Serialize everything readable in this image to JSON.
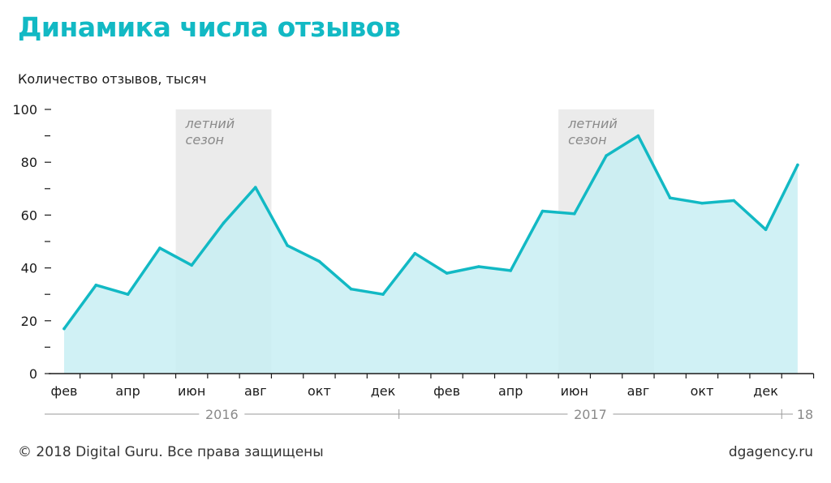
{
  "header": {
    "title": "Динамика числа отзывов"
  },
  "footer": {
    "copyright": "© 2018 Digital Guru. Все права защищены",
    "site": "dgagency.ru"
  },
  "colors": {
    "accent": "#12b9c4",
    "area_fill": "#c8eff3",
    "season_band": "#ebebeb"
  },
  "chart_data": {
    "type": "area",
    "title": "Динамика числа отзывов",
    "ylabel": "Количество отзывов, тысяч",
    "xlabel": "",
    "ylim": [
      0,
      100
    ],
    "y_ticks": [
      0,
      20,
      40,
      60,
      80,
      100
    ],
    "y_minor_ticks": [
      10,
      30,
      50,
      70,
      90
    ],
    "x": [
      "2016-02",
      "2016-03",
      "2016-04",
      "2016-05",
      "2016-06",
      "2016-07",
      "2016-08",
      "2016-09",
      "2016-10",
      "2016-11",
      "2016-12",
      "2017-01",
      "2017-02",
      "2017-03",
      "2017-04",
      "2017-05",
      "2017-06",
      "2017-07",
      "2017-08",
      "2017-09",
      "2017-10",
      "2017-11",
      "2017-12",
      "2018-01"
    ],
    "values": [
      17,
      33.5,
      30,
      47.5,
      41,
      57,
      70.5,
      48.5,
      42.5,
      32,
      30,
      45.5,
      38,
      40.5,
      39,
      61.5,
      60.5,
      82.5,
      90,
      66.5,
      64.5,
      65.5,
      54.5,
      79
    ],
    "x_tick_labels": [
      {
        "label": "фев",
        "index": 0
      },
      {
        "label": "апр",
        "index": 2
      },
      {
        "label": "июн",
        "index": 4
      },
      {
        "label": "авг",
        "index": 6
      },
      {
        "label": "окт",
        "index": 8
      },
      {
        "label": "дек",
        "index": 10
      },
      {
        "label": "фев",
        "index": 12
      },
      {
        "label": "апр",
        "index": 14
      },
      {
        "label": "июн",
        "index": 16
      },
      {
        "label": "авг",
        "index": 18
      },
      {
        "label": "окт",
        "index": 20
      },
      {
        "label": "дек",
        "index": 22
      }
    ],
    "years": [
      {
        "label": "2016",
        "start": 0,
        "end": 10
      },
      {
        "label": "2017",
        "start": 11,
        "end": 22
      },
      {
        "label": "18",
        "start": 23,
        "end": 23
      }
    ],
    "bands": [
      {
        "label_line1": "летний",
        "label_line2": "сезон",
        "start": 4,
        "end": 7
      },
      {
        "label_line1": "летний",
        "label_line2": "сезон",
        "start": 16,
        "end": 19
      }
    ],
    "grid": false,
    "legend": "none"
  }
}
